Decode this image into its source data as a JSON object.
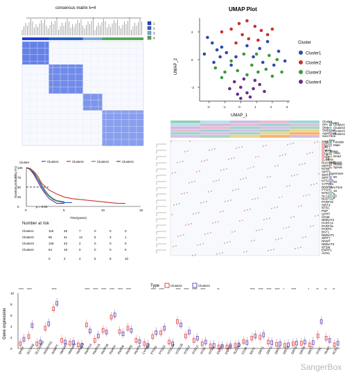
{
  "chart_data": [
    {
      "type": "heatmap",
      "title": "consensus matrix k=4",
      "legend": [
        "1",
        "2",
        "3",
        "4"
      ],
      "colors": [
        "#1f3fd9",
        "#2b63c7",
        "#7fa7d6",
        "#57a85c"
      ],
      "blocks": [
        0.22,
        0.28,
        0.16,
        0.34
      ]
    },
    {
      "type": "scatter",
      "title": "UMAP Plot",
      "xlabel": "UMAP_1",
      "ylabel": "UMAP_2",
      "legend_title": "Cluster",
      "series": [
        {
          "name": "Cluster1",
          "color": "#2f4aa8",
          "values": [
            [
              -2.1,
              1.6
            ],
            [
              -1.8,
              1.2
            ],
            [
              -1.5,
              0.7
            ],
            [
              -1.2,
              0.9
            ],
            [
              -0.9,
              0.5
            ],
            [
              -1.3,
              0.2
            ],
            [
              -1.7,
              -0.2
            ],
            [
              -2.3,
              0.4
            ],
            [
              -0.6,
              -0.4
            ],
            [
              0.4,
              1.0
            ],
            [
              -0.3,
              0.2
            ],
            [
              0.8,
              0.2
            ],
            [
              1.2,
              0.8
            ],
            [
              1.7,
              1.3
            ],
            [
              2.4,
              0.6
            ],
            [
              2.8,
              -0.1
            ],
            [
              2.1,
              -0.4
            ],
            [
              1.4,
              -0.2
            ]
          ]
        },
        {
          "name": "Cluster2",
          "color": "#c83232",
          "values": [
            [
              -0.6,
              2.2
            ],
            [
              -0.1,
              2.6
            ],
            [
              0.4,
              2.8
            ],
            [
              0.9,
              2.4
            ],
            [
              1.3,
              2.1
            ],
            [
              1.7,
              1.8
            ],
            [
              0.1,
              1.8
            ],
            [
              -1.2,
              2.0
            ],
            [
              0.5,
              1.5
            ],
            [
              1.1,
              1.4
            ],
            [
              2.0,
              2.2
            ],
            [
              -0.3,
              1.2
            ]
          ]
        },
        {
          "name": "Cluster3",
          "color": "#3c9a3c",
          "values": [
            [
              -1.6,
              -0.6
            ],
            [
              -1.0,
              -0.9
            ],
            [
              -0.6,
              -0.1
            ],
            [
              0.2,
              0.4
            ],
            [
              0.7,
              -0.4
            ],
            [
              1.1,
              -0.9
            ],
            [
              1.8,
              0.3
            ],
            [
              2.3,
              0.0
            ],
            [
              2.6,
              -0.9
            ],
            [
              1.6,
              -0.7
            ],
            [
              -0.2,
              -0.8
            ],
            [
              -1.2,
              -1.3
            ],
            [
              0.4,
              -1.1
            ],
            [
              1.0,
              0.4
            ],
            [
              2.0,
              -1.2
            ]
          ]
        },
        {
          "name": "Cluster4",
          "color": "#6a2d8c",
          "values": [
            [
              -0.4,
              -1.6
            ],
            [
              0.0,
              -2.0
            ],
            [
              0.4,
              -2.4
            ],
            [
              0.8,
              -2.1
            ],
            [
              1.2,
              -1.8
            ],
            [
              -0.7,
              -2.1
            ],
            [
              0.2,
              -1.4
            ],
            [
              0.9,
              -1.5
            ],
            [
              0.6,
              -2.7
            ],
            [
              -0.2,
              -2.5
            ],
            [
              1.5,
              -2.3
            ],
            [
              0.0,
              -2.8
            ]
          ]
        }
      ],
      "xticks": [
        -2,
        -1,
        0,
        1,
        2,
        3
      ],
      "yticks": [
        2,
        0,
        -2
      ],
      "xlim": [
        -2.6,
        3.1
      ],
      "ylim": [
        -3.0,
        3.0
      ]
    },
    {
      "type": "heatmap",
      "annotation_labels": [
        "Cluster",
        "Sex",
        "Status",
        "StdDcast",
        "AgeOnset",
        "SurvTime"
      ],
      "legend": {
        "cluster_title": "Cluster",
        "cluster_items": [
          {
            "label": "Cluster1",
            "color": "#6bc0a4"
          },
          {
            "label": "Cluster2",
            "color": "#9fd6df"
          },
          {
            "label": "Cluster3",
            "color": "#b9a6d9"
          },
          {
            "label": "Cluster4",
            "color": "#e6a2c0"
          }
        ],
        "sex_title": "Sex",
        "sex_items": [
          {
            "label": "Female",
            "color": "#7ec8c0"
          },
          {
            "label": "Male",
            "color": "#c9a9e1"
          }
        ],
        "status_title": "Status",
        "status_items": [
          {
            "label": "Alive",
            "color": "#8fc7a0"
          },
          {
            "label": "Dead",
            "color": "#e7c56d"
          }
        ],
        "stddcast_title": "StdDcast",
        "stddcast_items": [
          {
            "label": "Bulbar",
            "color": "#f19a3e"
          },
          {
            "label": "Spinal",
            "color": "#c2a6df"
          }
        ],
        "ageonset_title": "AgeOnset",
        "ageonset_ticks": [
          "80",
          "40"
        ],
        "survtime_title": "SurvTime",
        "survtime_ticks": [
          "15",
          "5",
          "0"
        ],
        "scale_ticks": [
          "10",
          "5",
          "0",
          "-5",
          "-10"
        ]
      },
      "genes": [
        "SIRT1",
        "PTGS2",
        "SIRT1",
        "PARP9",
        "NTDC3",
        "NAMPT",
        "SLC5A8",
        "NADSYN1",
        "SIRT6",
        "NT5E",
        "SIRT5",
        "SIRT2",
        "SIRT7",
        "NT5C1B",
        "CYP8B1",
        "NNMT3",
        "PTGIS",
        "NT5C1A",
        "SLC22A13",
        "NUDT12",
        "PARP16",
        "SIRT4",
        "NT5C",
        "PNP",
        "QPRT",
        "CD38",
        "NMNAT2",
        "PARP14",
        "PARP15",
        "PARP4",
        "BST1",
        "NMNAT1",
        "SIRT7",
        "NNMT",
        "NMNAT3",
        "NT5M",
        "ENPP1",
        "AOX1"
      ]
    },
    {
      "type": "line",
      "legend_title": "Cluster",
      "xlabel": "Time(years)",
      "ylabel": "Survival probability (%)",
      "series": [
        {
          "name": "Cluster1",
          "color": "#2b55c9",
          "x": [
            0,
            0.5,
            1,
            1.5,
            2,
            2.5,
            3,
            3.5,
            4,
            5,
            6
          ],
          "y": [
            100,
            96,
            85,
            70,
            52,
            36,
            26,
            18,
            14,
            10,
            10
          ]
        },
        {
          "name": "Cluster2",
          "color": "#c8332b",
          "x": [
            0,
            0.5,
            1,
            1.5,
            2,
            3,
            4,
            5,
            6,
            8,
            10,
            12,
            13
          ],
          "y": [
            100,
            98,
            90,
            78,
            60,
            42,
            32,
            24,
            20,
            16,
            12,
            8,
            8
          ]
        },
        {
          "name": "Cluster3",
          "color": "#3a9a3a",
          "x": [
            0,
            0.5,
            1,
            1.5,
            2,
            2.5,
            3,
            3.5,
            4,
            5
          ],
          "y": [
            100,
            97,
            88,
            72,
            56,
            40,
            28,
            20,
            15,
            12
          ]
        },
        {
          "name": "Cluster4",
          "color": "#6a2d8c",
          "x": [
            0,
            0.5,
            1,
            1.5,
            2,
            2.5,
            3,
            3.5,
            4,
            5
          ],
          "y": [
            100,
            95,
            82,
            64,
            46,
            32,
            20,
            14,
            8,
            8
          ]
        }
      ],
      "xticks": [
        "0",
        "5",
        "10",
        "15"
      ],
      "yticks": [
        "0",
        "25",
        "50",
        "75",
        "100"
      ],
      "annotation": "p = 0.04",
      "risk_title": "Number at risk",
      "risk_rows": [
        {
          "label": "Cluster1",
          "values": [
            "115",
            "45",
            "7",
            "0",
            "0",
            "0"
          ]
        },
        {
          "label": "Cluster2",
          "values": [
            "95",
            "41",
            "12",
            "5",
            "3",
            "1"
          ]
        },
        {
          "label": "Cluster3",
          "values": [
            "125",
            "43",
            "2",
            "0",
            "0",
            "0"
          ]
        },
        {
          "label": "Cluster4",
          "values": [
            "54",
            "19",
            "0",
            "0",
            "0",
            "0"
          ]
        }
      ],
      "risk_xticks": [
        "0",
        "2",
        "4",
        "6",
        "8",
        "10"
      ]
    },
    {
      "type": "bar",
      "title": "",
      "legend_title": "Type",
      "series": [
        {
          "name": "Cluster2",
          "color": "#df4a4a"
        },
        {
          "name": "Cluster4",
          "color": "#6f4bb3"
        }
      ],
      "ylabel": "Gene expression",
      "yticks": [
        "0",
        "2",
        "4",
        "6",
        "8",
        "10"
      ],
      "categories": [
        "QPRT",
        "SLC5A8",
        "SLC22A13",
        "NADSYN1",
        "NAMPT",
        "NMNAT1",
        "NMNAT2",
        "NMNAT3",
        "PARP14",
        "PARP15",
        "PARP16",
        "PARP4",
        "PARP6",
        "PARP8",
        "PARP9",
        "CYP8B1",
        "PTGIS",
        "PTGS2",
        "NT5C1A",
        "NT5C1B",
        "NT5C2",
        "NT5C3",
        "NT5E",
        "NT5M",
        "ENPP1",
        "ENPP3",
        "NUDT12",
        "CD38",
        "BST1",
        "SIRT1",
        "SIRT2",
        "SIRT3",
        "SIRT4",
        "SIRT5",
        "SIRT6",
        "SIRT7",
        "NT5C",
        "NNMT",
        "AOX1"
      ],
      "values": [
        [
          1.2,
          2.0
        ],
        [
          2.5,
          4.5
        ],
        [
          1.2,
          1.5
        ],
        [
          4.0,
          4.8
        ],
        [
          7.5,
          8.5
        ],
        [
          1.8,
          1.5
        ],
        [
          1.3,
          1.4
        ],
        [
          1.0,
          0.9
        ],
        [
          4.6,
          3.5
        ],
        [
          1.8,
          2.6
        ],
        [
          3.6,
          3.3
        ],
        [
          6.0,
          6.4
        ],
        [
          3.4,
          3.0
        ],
        [
          4.0,
          3.6
        ],
        [
          1.8,
          1.6
        ],
        [
          1.2,
          0.9
        ],
        [
          2.5,
          3.2
        ],
        [
          3.2,
          4.0
        ],
        [
          1.5,
          1.2
        ],
        [
          5.2,
          4.6
        ],
        [
          2.6,
          3.3
        ],
        [
          1.8,
          2.2
        ],
        [
          1.2,
          1.5
        ],
        [
          0.8,
          0.9
        ],
        [
          0.6,
          0.7
        ],
        [
          0.6,
          0.8
        ],
        [
          0.9,
          1.0
        ],
        [
          1.6,
          1.4
        ],
        [
          2.2,
          2.6
        ],
        [
          2.4,
          2.8
        ],
        [
          1.5,
          1.4
        ],
        [
          1.1,
          1.2
        ],
        [
          0.9,
          1.0
        ],
        [
          1.2,
          1.3
        ],
        [
          1.3,
          1.5
        ],
        [
          1.0,
          1.4
        ],
        [
          2.6,
          5.2
        ],
        [
          2.2,
          1.8
        ],
        [
          1.0,
          1.3
        ]
      ],
      "significance": [
        "****",
        "****",
        "",
        "",
        "****",
        "",
        "",
        "",
        "****",
        "****",
        "****",
        "****",
        "****",
        "****",
        "",
        "",
        "****",
        "****",
        "",
        "****",
        "****",
        "****",
        "****",
        "",
        "**",
        "",
        "",
        "",
        "****",
        "****",
        "****",
        "****",
        "*",
        "****",
        "",
        "*",
        "**",
        "**",
        "**"
      ]
    }
  ],
  "watermark": "SangerBox"
}
